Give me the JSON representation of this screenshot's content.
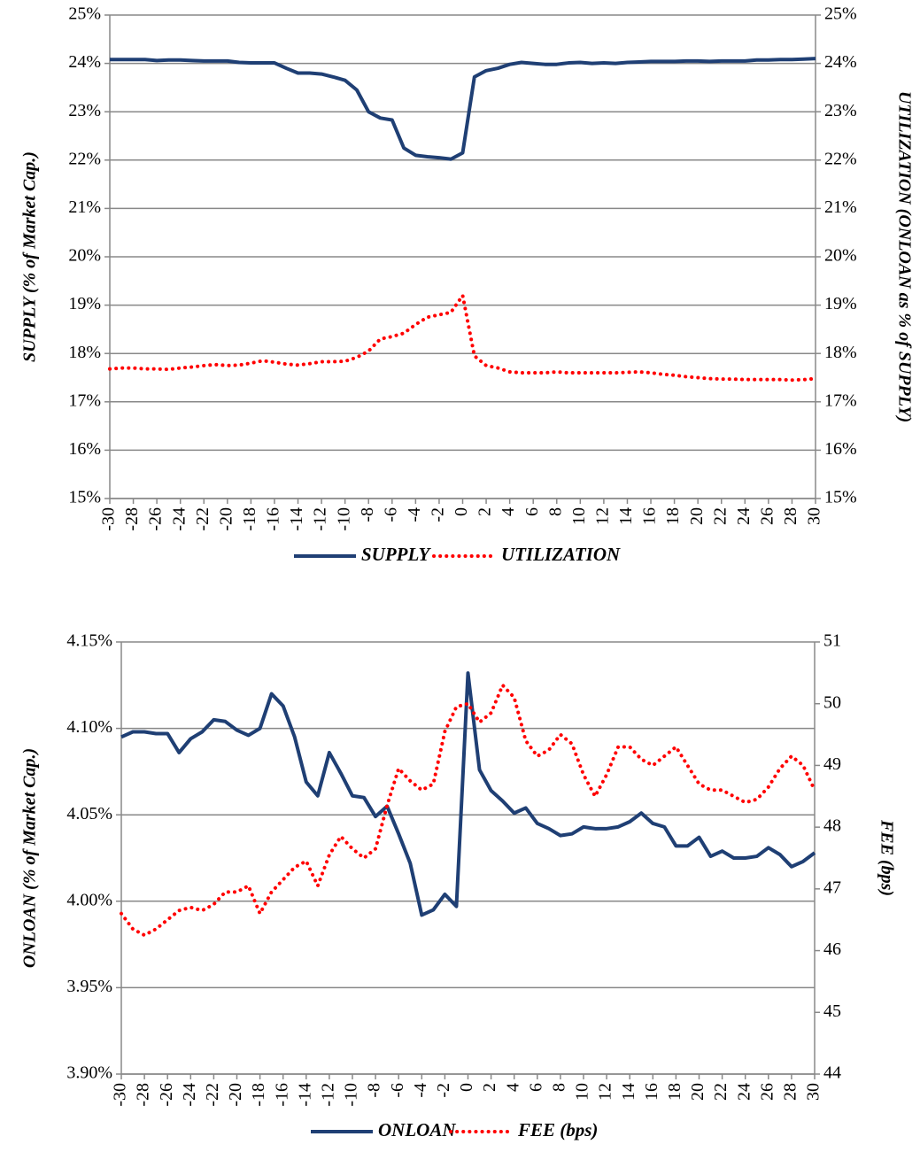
{
  "chart_data": [
    {
      "type": "line",
      "x": [
        -30,
        -29,
        -28,
        -27,
        -26,
        -25,
        -24,
        -23,
        -22,
        -21,
        -20,
        -19,
        -18,
        -17,
        -16,
        -15,
        -14,
        -13,
        -12,
        -11,
        -10,
        -9,
        -8,
        -7,
        -6,
        -5,
        -4,
        -3,
        -2,
        -1,
        0,
        1,
        2,
        3,
        4,
        5,
        6,
        7,
        8,
        9,
        10,
        11,
        12,
        13,
        14,
        15,
        16,
        17,
        18,
        19,
        20,
        21,
        22,
        23,
        24,
        25,
        26,
        27,
        28,
        29,
        30
      ],
      "xlim": [
        -30,
        30
      ],
      "xticks": [
        -30,
        -28,
        -26,
        -24,
        -22,
        -20,
        -18,
        -16,
        -14,
        -12,
        -10,
        -8,
        -6,
        -4,
        -2,
        0,
        2,
        4,
        6,
        8,
        10,
        12,
        14,
        16,
        18,
        20,
        22,
        24,
        26,
        28,
        30
      ],
      "ylim": [
        15,
        25
      ],
      "yticks": [
        {
          "value": 15,
          "label": "15%"
        },
        {
          "value": 16,
          "label": "16%"
        },
        {
          "value": 17,
          "label": "17%"
        },
        {
          "value": 18,
          "label": "18%"
        },
        {
          "value": 19,
          "label": "19%"
        },
        {
          "value": 20,
          "label": "20%"
        },
        {
          "value": 21,
          "label": "21%"
        },
        {
          "value": 22,
          "label": "22%"
        },
        {
          "value": 23,
          "label": "23%"
        },
        {
          "value": 24,
          "label": "24%"
        },
        {
          "value": 25,
          "label": "25%"
        }
      ],
      "y2lim": [
        15,
        25
      ],
      "y2ticks": [
        {
          "value": 15,
          "label": "15%"
        },
        {
          "value": 16,
          "label": "16%"
        },
        {
          "value": 17,
          "label": "17%"
        },
        {
          "value": 18,
          "label": "18%"
        },
        {
          "value": 19,
          "label": "19%"
        },
        {
          "value": 20,
          "label": "20%"
        },
        {
          "value": 21,
          "label": "21%"
        },
        {
          "value": 22,
          "label": "22%"
        },
        {
          "value": 23,
          "label": "23%"
        },
        {
          "value": 24,
          "label": "24%"
        },
        {
          "value": 25,
          "label": "25%"
        }
      ],
      "ylabel": "SUPPLY (% of Market Cap.)",
      "y2label": "UTILIZATION (ONLOAN as % of SUPPLY)",
      "grid": true,
      "legend": "bottom",
      "series": [
        {
          "name": "SUPPLY",
          "color": "#1f3f74",
          "style": "solid",
          "values": [
            24.08,
            24.08,
            24.08,
            24.08,
            24.06,
            24.07,
            24.07,
            24.06,
            24.05,
            24.05,
            24.05,
            24.02,
            24.01,
            24.01,
            24.01,
            23.9,
            23.8,
            23.8,
            23.78,
            23.72,
            23.65,
            23.45,
            23.0,
            22.87,
            22.83,
            22.25,
            22.1,
            22.07,
            22.05,
            22.02,
            22.15,
            23.72,
            23.85,
            23.9,
            23.98,
            24.02,
            24.0,
            23.98,
            23.98,
            24.01,
            24.02,
            24.0,
            24.01,
            24.0,
            24.02,
            24.03,
            24.04,
            24.04,
            24.04,
            24.05,
            24.05,
            24.04,
            24.05,
            24.05,
            24.05,
            24.07,
            24.07,
            24.08,
            24.08,
            24.09,
            24.1
          ]
        },
        {
          "name": "UTILIZATION",
          "color": "#ff0000",
          "style": "dotted",
          "axis": "y2",
          "values": [
            17.68,
            17.7,
            17.7,
            17.68,
            17.68,
            17.67,
            17.7,
            17.72,
            17.75,
            17.77,
            17.75,
            17.76,
            17.8,
            17.85,
            17.82,
            17.78,
            17.76,
            17.79,
            17.83,
            17.83,
            17.84,
            17.92,
            18.05,
            18.3,
            18.35,
            18.42,
            18.6,
            18.75,
            18.8,
            18.85,
            19.2,
            17.95,
            17.75,
            17.7,
            17.62,
            17.6,
            17.6,
            17.6,
            17.62,
            17.6,
            17.6,
            17.6,
            17.6,
            17.6,
            17.61,
            17.62,
            17.6,
            17.57,
            17.55,
            17.52,
            17.5,
            17.48,
            17.47,
            17.47,
            17.46,
            17.46,
            17.46,
            17.46,
            17.45,
            17.46,
            17.48
          ]
        }
      ]
    },
    {
      "type": "line",
      "x": [
        -30,
        -29,
        -28,
        -27,
        -26,
        -25,
        -24,
        -23,
        -22,
        -21,
        -20,
        -19,
        -18,
        -17,
        -16,
        -15,
        -14,
        -13,
        -12,
        -11,
        -10,
        -9,
        -8,
        -7,
        -6,
        -5,
        -4,
        -3,
        -2,
        -1,
        0,
        1,
        2,
        3,
        4,
        5,
        6,
        7,
        8,
        9,
        10,
        11,
        12,
        13,
        14,
        15,
        16,
        17,
        18,
        19,
        20,
        21,
        22,
        23,
        24,
        25,
        26,
        27,
        28,
        29,
        30
      ],
      "xlim": [
        -30,
        30
      ],
      "xticks": [
        -30,
        -28,
        -26,
        -24,
        -22,
        -20,
        -18,
        -16,
        -14,
        -12,
        -10,
        -8,
        -6,
        -4,
        -2,
        0,
        2,
        4,
        6,
        8,
        10,
        12,
        14,
        16,
        18,
        20,
        22,
        24,
        26,
        28,
        30
      ],
      "ylim": [
        3.9,
        4.15
      ],
      "yticks": [
        {
          "value": 3.9,
          "label": "3.90%"
        },
        {
          "value": 3.95,
          "label": "3.95%"
        },
        {
          "value": 4.0,
          "label": "4.00%"
        },
        {
          "value": 4.05,
          "label": "4.05%"
        },
        {
          "value": 4.1,
          "label": "4.10%"
        },
        {
          "value": 4.15,
          "label": "4.15%"
        }
      ],
      "y2lim": [
        44,
        51
      ],
      "y2ticks": [
        44,
        45,
        46,
        47,
        48,
        49,
        50,
        51
      ],
      "ylabel": "ONLOAN (% of Market Cap.)",
      "y2label": "FEE (bps)",
      "grid": true,
      "legend": "bottom",
      "series": [
        {
          "name": "ONLOAN",
          "color": "#1f3f74",
          "style": "solid",
          "values": [
            4.095,
            4.098,
            4.098,
            4.097,
            4.097,
            4.086,
            4.094,
            4.098,
            4.105,
            4.104,
            4.099,
            4.096,
            4.1,
            4.12,
            4.113,
            4.095,
            4.069,
            4.061,
            4.086,
            4.074,
            4.061,
            4.06,
            4.049,
            4.055,
            4.039,
            4.022,
            3.992,
            3.995,
            4.004,
            3.997,
            4.132,
            4.076,
            4.064,
            4.058,
            4.051,
            4.054,
            4.045,
            4.042,
            4.038,
            4.039,
            4.043,
            4.042,
            4.042,
            4.043,
            4.046,
            4.051,
            4.045,
            4.043,
            4.032,
            4.032,
            4.037,
            4.026,
            4.029,
            4.025,
            4.025,
            4.026,
            4.031,
            4.027,
            4.02,
            4.023,
            4.028
          ]
        },
        {
          "name": "FEE (bps)",
          "color": "#ff0000",
          "style": "dotted",
          "axis": "y2",
          "values": [
            46.6,
            46.35,
            46.25,
            46.35,
            46.5,
            46.65,
            46.7,
            46.65,
            46.75,
            46.95,
            46.95,
            47.05,
            46.6,
            46.95,
            47.15,
            47.35,
            47.45,
            47.05,
            47.55,
            47.85,
            47.65,
            47.5,
            47.65,
            48.35,
            48.95,
            48.75,
            48.6,
            48.7,
            49.55,
            49.95,
            50.0,
            49.7,
            49.85,
            50.3,
            50.1,
            49.4,
            49.15,
            49.25,
            49.5,
            49.35,
            48.85,
            48.5,
            48.85,
            49.3,
            49.3,
            49.1,
            49.0,
            49.15,
            49.3,
            49.0,
            48.7,
            48.6,
            48.6,
            48.5,
            48.4,
            48.45,
            48.65,
            48.95,
            49.15,
            49.0,
            48.6
          ]
        }
      ]
    }
  ]
}
